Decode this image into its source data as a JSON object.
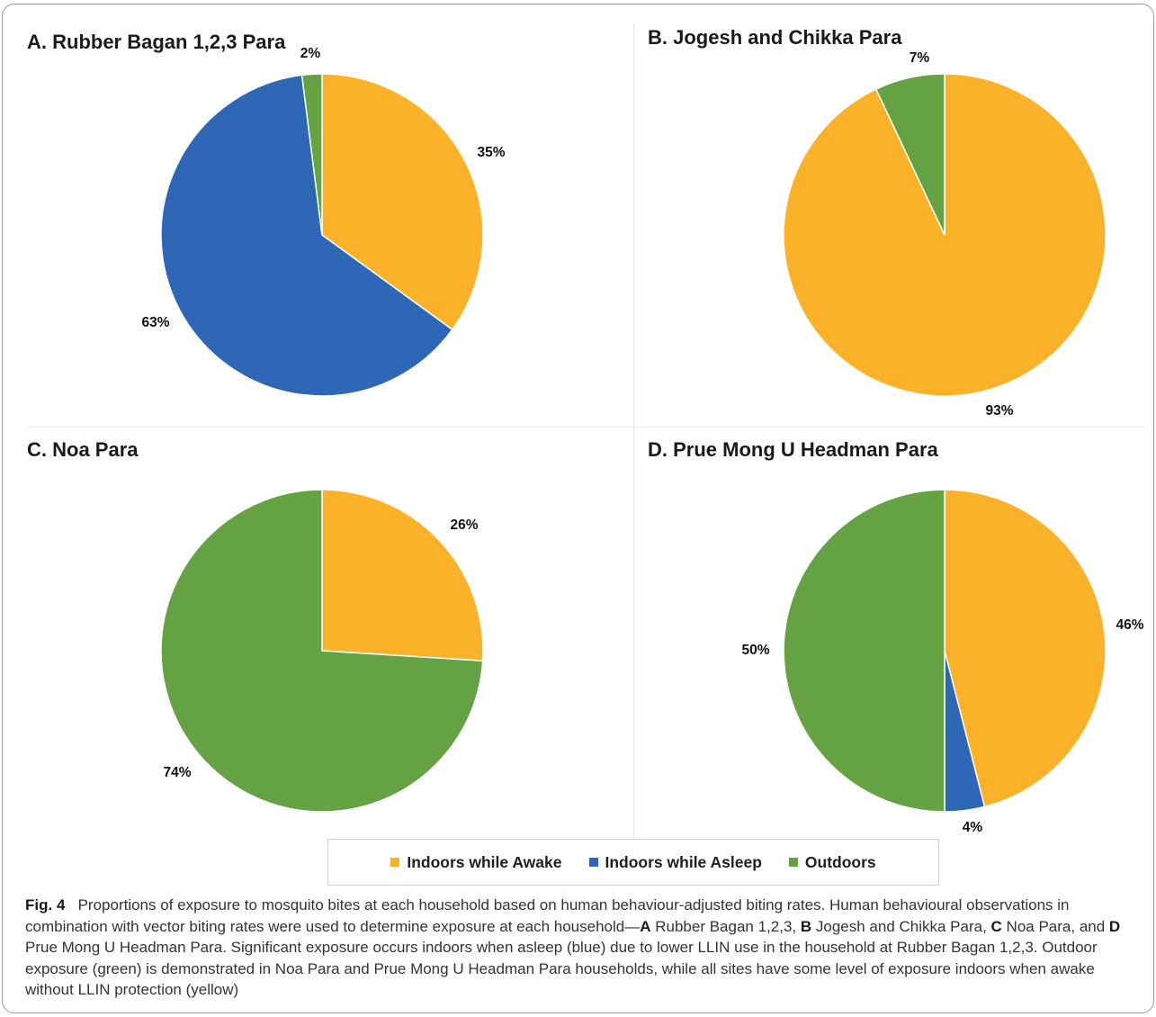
{
  "colors": {
    "indoors_awake": "#fbb228",
    "indoors_asleep": "#2f67b7",
    "outdoors": "#64a243"
  },
  "legend": [
    {
      "key": "indoors_awake",
      "label": "Indoors while Awake"
    },
    {
      "key": "indoors_asleep",
      "label": "Indoors while Asleep"
    },
    {
      "key": "outdoors",
      "label": "Outdoors"
    }
  ],
  "chart_data": [
    {
      "type": "pie",
      "title": "A. Rubber Bagan 1,2,3 Para",
      "slices": [
        {
          "name": "Indoors while Awake",
          "value": 35,
          "label": "35%"
        },
        {
          "name": "Indoors while Asleep",
          "value": 63,
          "label": "63%"
        },
        {
          "name": "Outdoors",
          "value": 2,
          "label": "2%"
        }
      ]
    },
    {
      "type": "pie",
      "title": "B. Jogesh and Chikka Para",
      "slices": [
        {
          "name": "Indoors while Awake",
          "value": 93,
          "label": "93%"
        },
        {
          "name": "Outdoors",
          "value": 7,
          "label": "7%"
        }
      ]
    },
    {
      "type": "pie",
      "title": "C. Noa Para",
      "slices": [
        {
          "name": "Indoors while Awake",
          "value": 26,
          "label": "26%"
        },
        {
          "name": "Outdoors",
          "value": 74,
          "label": "74%"
        }
      ]
    },
    {
      "type": "pie",
      "title": "D. Prue Mong U Headman Para",
      "slices": [
        {
          "name": "Indoors while Awake",
          "value": 46,
          "label": "46%"
        },
        {
          "name": "Indoors while Asleep",
          "value": 4,
          "label": "4%"
        },
        {
          "name": "Outdoors",
          "value": 50,
          "label": "50%"
        }
      ]
    }
  ],
  "caption": {
    "fig_label": "Fig. 4",
    "text_1": "Proportions of exposure to mosquito bites at each household based on human behaviour-adjusted biting rates. Human behavioural observations in combination with vector biting rates were used to determine exposure at each household—",
    "a": "A",
    "a_text": " Rubber Bagan 1,2,3, ",
    "b": "B",
    "b_text": " Jogesh and Chikka Para, ",
    "c": "C",
    "c_text": " Noa Para, and ",
    "d": "D",
    "d_text": " Prue Mong U Headman Para. Significant exposure occurs indoors when asleep (blue) due to lower LLIN use in the household at Rubber Bagan 1,2,3. Outdoor exposure (green) is demonstrated in Noa Para and Prue Mong U Headman Para households, while all sites have some level of exposure indoors when awake without LLIN protection (yellow)"
  }
}
